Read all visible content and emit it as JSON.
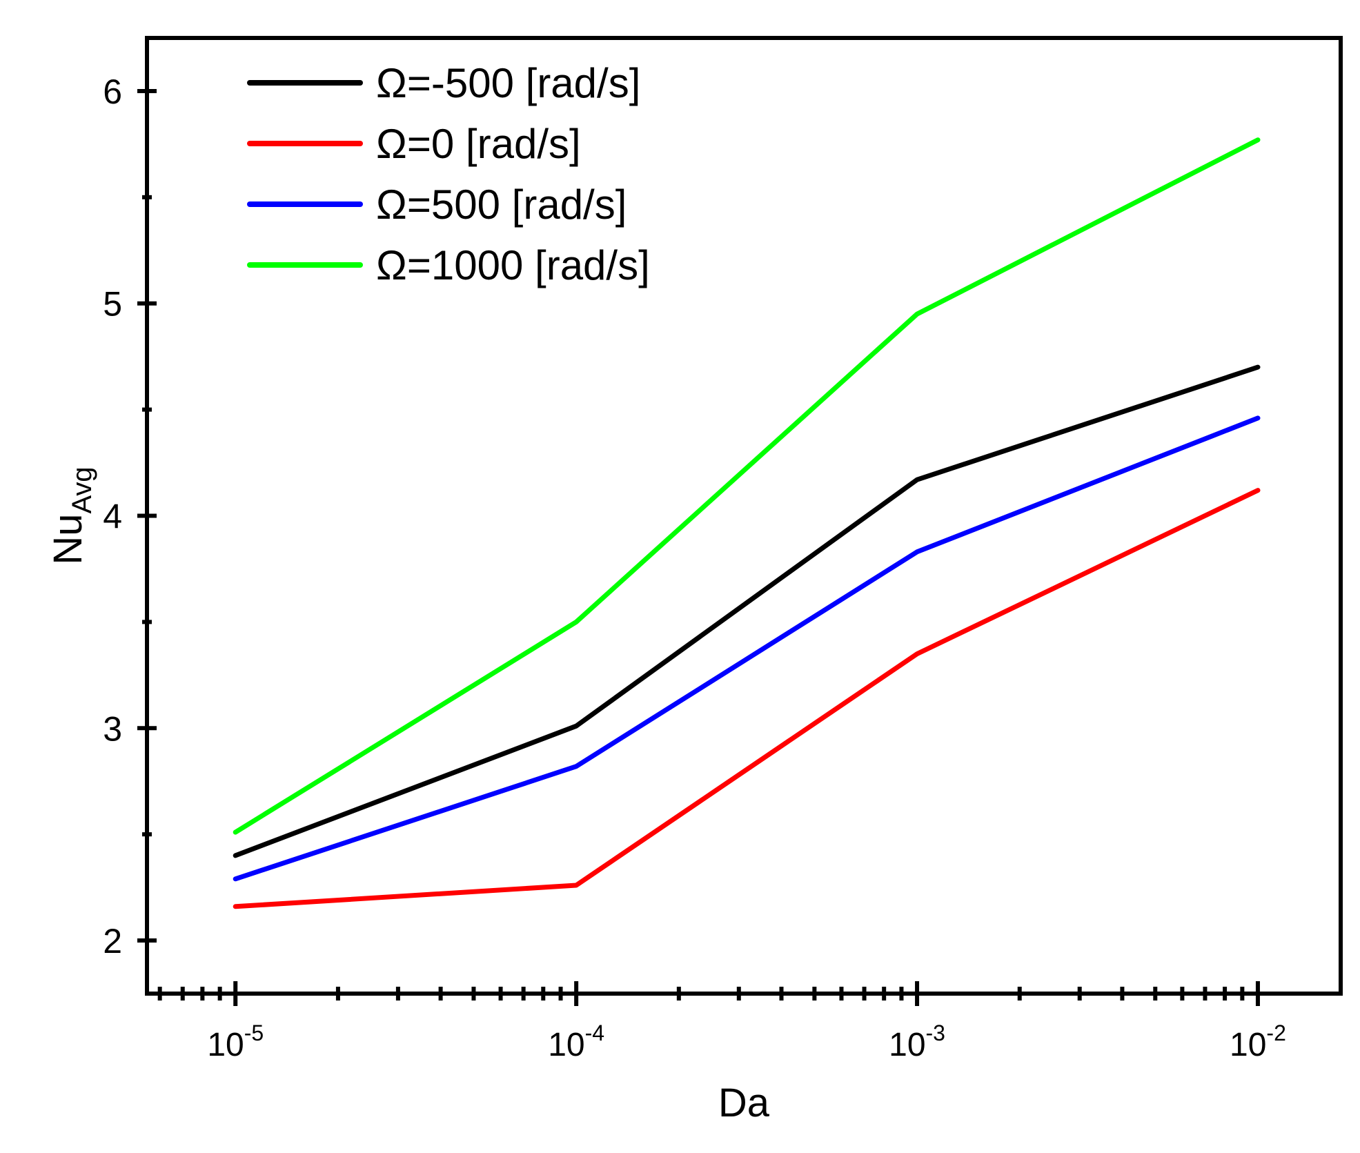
{
  "chart_data": {
    "type": "line",
    "xscale": "log",
    "x": [
      1e-05,
      0.0001,
      0.001,
      0.01
    ],
    "xlim": [
      5.5e-06,
      0.0175
    ],
    "ylim": [
      1.75,
      6.25
    ],
    "xticks": [
      {
        "value": 1e-05,
        "base": "10",
        "exp": "-5"
      },
      {
        "value": 0.0001,
        "base": "10",
        "exp": "-4"
      },
      {
        "value": 0.001,
        "base": "10",
        "exp": "-3"
      },
      {
        "value": 0.01,
        "base": "10",
        "exp": "-2"
      }
    ],
    "yticks": [
      2,
      3,
      4,
      5,
      6
    ],
    "ytick_labels": [
      "2",
      "3",
      "4",
      "5",
      "6"
    ],
    "yminor": [
      2.5,
      3.5,
      4.5,
      5.5
    ],
    "xlabel": "Da",
    "ylabel": {
      "main": "Nu",
      "sub": "Avg"
    },
    "legend_position": "top-left",
    "series": [
      {
        "name": "Ω=-500 [rad/s]",
        "color": "#000000",
        "values": [
          2.4,
          3.01,
          4.17,
          4.7
        ]
      },
      {
        "name": "Ω=0 [rad/s]",
        "color": "#ff0000",
        "values": [
          2.16,
          2.26,
          3.35,
          4.12
        ]
      },
      {
        "name": "Ω=500 [rad/s]",
        "color": "#0000ff",
        "values": [
          2.29,
          2.82,
          3.83,
          4.46
        ]
      },
      {
        "name": "Ω=1000 [rad/s]",
        "color": "#00ff00",
        "values": [
          2.51,
          3.5,
          4.95,
          5.77
        ]
      }
    ]
  }
}
